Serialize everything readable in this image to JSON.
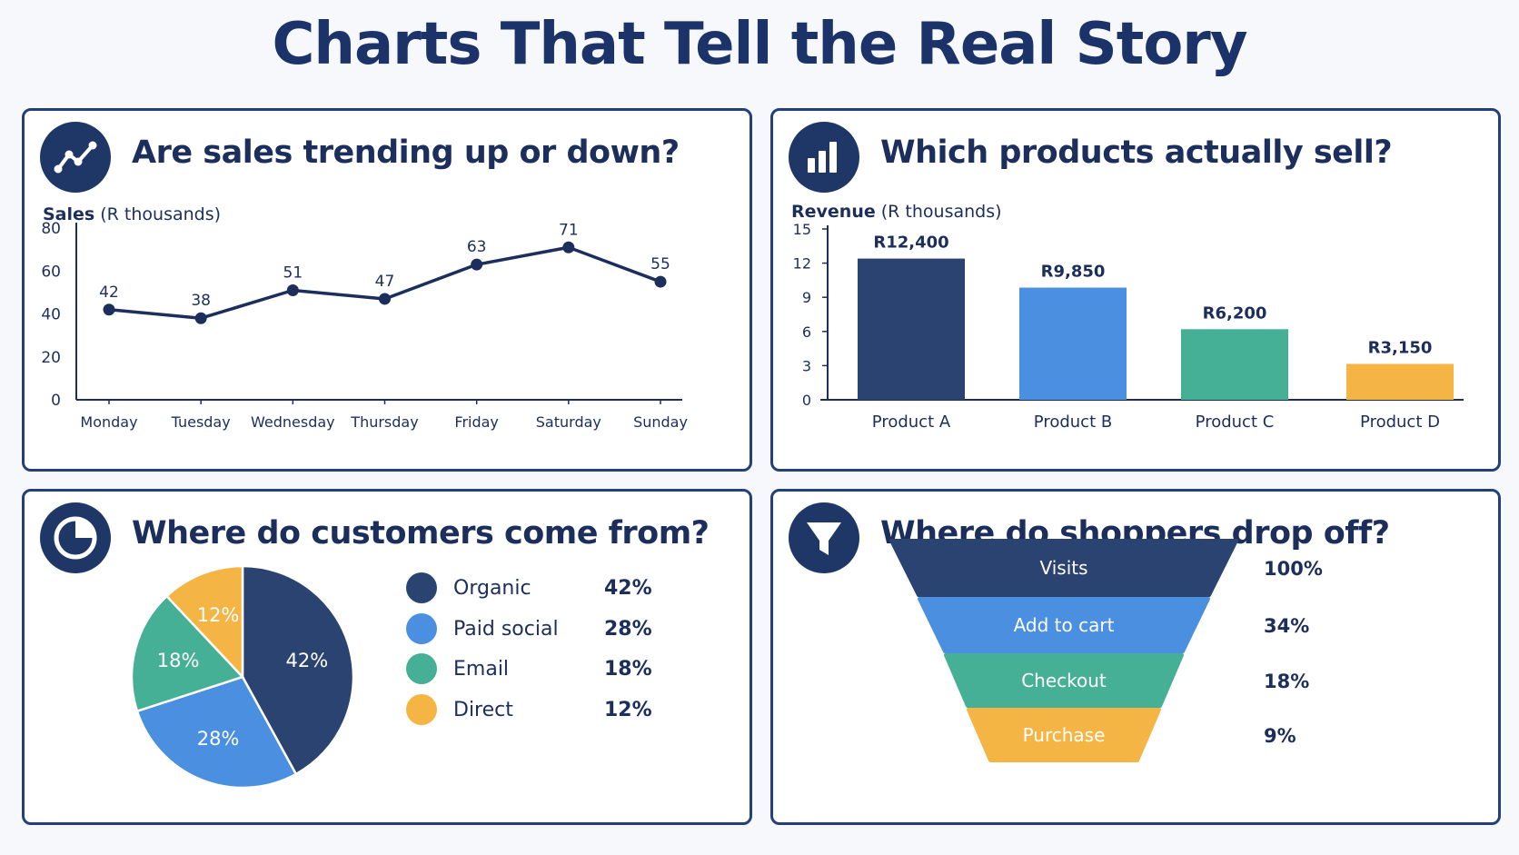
{
  "page": {
    "title": "Charts That Tell the Real Story"
  },
  "panels": {
    "trend": {
      "title": "Are sales trending up or down?",
      "icon": "line-chart-icon"
    },
    "products": {
      "title": "Which products actually sell?",
      "icon": "bar-chart-icon"
    },
    "sources": {
      "title": "Where do customers come from?",
      "icon": "pie-chart-icon"
    },
    "funnel": {
      "title": "Where do shoppers drop off?",
      "icon": "funnel-icon"
    }
  },
  "colors": {
    "navy": "#2b4370",
    "blue": "#4a8fe0",
    "teal": "#46b097",
    "amber": "#f5b544",
    "border": "#24407a"
  },
  "chart_data": [
    {
      "type": "line",
      "title": "Are sales trending up or down?",
      "ylabel_bold": "Sales",
      "ylabel_rest": " (R thousands)",
      "categories": [
        "Monday",
        "Tuesday",
        "Wednesday",
        "Thursday",
        "Friday",
        "Saturday",
        "Sunday"
      ],
      "values": [
        42,
        38,
        51,
        47,
        63,
        71,
        55
      ],
      "data_labels": [
        "42",
        "38",
        "51",
        "47",
        "63",
        "71",
        "55"
      ],
      "ylim": [
        0,
        80
      ],
      "yticks": [
        "0",
        "20",
        "40",
        "60",
        "80"
      ],
      "grid": false
    },
    {
      "type": "bar",
      "title": "Which products actually sell?",
      "ylabel_bold": "Revenue",
      "ylabel_rest": " (R thousands)",
      "categories": [
        "Product A",
        "Product B",
        "Product C",
        "Product D"
      ],
      "values": [
        12.4,
        9.85,
        6.2,
        3.15
      ],
      "data_labels": [
        "R12,400",
        "R9,850",
        "R6,200",
        "R3,150"
      ],
      "ylim": [
        0,
        15
      ],
      "yticks": [
        "0",
        "3",
        "6",
        "9",
        "12",
        "15"
      ],
      "colors": [
        "#2b4370",
        "#4a8fe0",
        "#46b097",
        "#f5b544"
      ],
      "grid": false
    },
    {
      "type": "pie",
      "title": "Where do customers come from?",
      "labels": [
        "Organic",
        "Paid social",
        "Email",
        "Direct"
      ],
      "values": [
        42,
        28,
        18,
        12
      ],
      "slice_labels": [
        "42%",
        "28%",
        "18%",
        "12%"
      ],
      "legend_values": [
        "42%",
        "28%",
        "18%",
        "12%"
      ],
      "colors": [
        "#2b4370",
        "#4a8fe0",
        "#46b097",
        "#f5b544"
      ],
      "legend": "right"
    },
    {
      "type": "bar",
      "subtype": "funnel",
      "title": "Where do shoppers drop off?",
      "categories": [
        "Visits",
        "Add to cart",
        "Checkout",
        "Purchase"
      ],
      "values": [
        100,
        34,
        18,
        9
      ],
      "value_labels": [
        "100%",
        "34%",
        "18%",
        "9%"
      ],
      "colors": [
        "#2b4370",
        "#4a8fe0",
        "#46b097",
        "#f5b544"
      ]
    }
  ]
}
